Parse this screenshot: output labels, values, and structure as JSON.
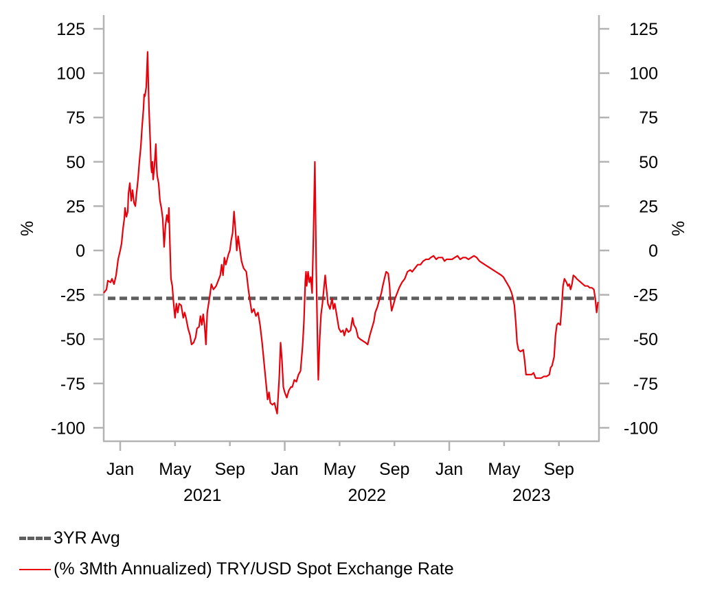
{
  "chart_data": {
    "type": "line",
    "title": "",
    "xlabel": "",
    "ylabel_left": "%",
    "ylabel_right": "%",
    "ylim": [
      -107,
      130
    ],
    "yticks": [
      125,
      100,
      75,
      50,
      25,
      0,
      -25,
      -50,
      -75,
      -100
    ],
    "yticks_labels": [
      "125",
      "100",
      "75",
      "50",
      "25",
      "0",
      "-25",
      "-50",
      "-75",
      "-100"
    ],
    "x_unit": "months since Jan 2021",
    "xlim": [
      -1.2,
      34.9
    ],
    "xticks": [
      {
        "m": 0,
        "label": "Jan",
        "major": true
      },
      {
        "m": 4,
        "label": "May",
        "major": false
      },
      {
        "m": 8,
        "label": "Sep",
        "major": false
      },
      {
        "m": 12,
        "label": "Jan",
        "major": true
      },
      {
        "m": 16,
        "label": "May",
        "major": false
      },
      {
        "m": 20,
        "label": "Sep",
        "major": false
      },
      {
        "m": 24,
        "label": "Jan",
        "major": true
      },
      {
        "m": 28,
        "label": "May",
        "major": false
      },
      {
        "m": 32,
        "label": "Sep",
        "major": false
      }
    ],
    "year_labels": [
      {
        "m": 6,
        "label": "2021"
      },
      {
        "m": 18,
        "label": "2022"
      },
      {
        "m": 30,
        "label": "2023"
      }
    ],
    "grid": false,
    "legend_position": "bottom-left",
    "series": [
      {
        "name": "3YR Avg",
        "style": "dashed",
        "color": "#5f5f5f",
        "value": -27
      },
      {
        "name": "(% 3Mth Annualized) TRY/USD Spot Exchange Rate",
        "style": "solid",
        "color": "#e8000b",
        "points": [
          [
            -1.2,
            -24
          ],
          [
            -1.0,
            -22
          ],
          [
            -0.9,
            -17
          ],
          [
            -0.7,
            -18
          ],
          [
            -0.6,
            -16
          ],
          [
            -0.45,
            -19
          ],
          [
            -0.3,
            -14
          ],
          [
            -0.15,
            -5
          ],
          [
            0.0,
            0
          ],
          [
            0.1,
            4
          ],
          [
            0.2,
            12
          ],
          [
            0.3,
            18
          ],
          [
            0.35,
            24
          ],
          [
            0.45,
            19
          ],
          [
            0.55,
            22
          ],
          [
            0.6,
            32
          ],
          [
            0.7,
            38
          ],
          [
            0.8,
            28
          ],
          [
            0.9,
            34
          ],
          [
            1.0,
            27
          ],
          [
            1.1,
            25
          ],
          [
            1.2,
            33
          ],
          [
            1.3,
            40
          ],
          [
            1.4,
            50
          ],
          [
            1.5,
            58
          ],
          [
            1.6,
            70
          ],
          [
            1.7,
            80
          ],
          [
            1.75,
            88
          ],
          [
            1.8,
            87
          ],
          [
            1.9,
            92
          ],
          [
            2.0,
            112
          ],
          [
            2.05,
            95
          ],
          [
            2.1,
            80
          ],
          [
            2.2,
            60
          ],
          [
            2.25,
            48
          ],
          [
            2.3,
            44
          ],
          [
            2.35,
            50
          ],
          [
            2.4,
            40
          ],
          [
            2.5,
            48
          ],
          [
            2.6,
            60
          ],
          [
            2.65,
            48
          ],
          [
            2.7,
            42
          ],
          [
            2.8,
            38
          ],
          [
            2.9,
            28
          ],
          [
            3.0,
            24
          ],
          [
            3.1,
            18
          ],
          [
            3.2,
            2
          ],
          [
            3.3,
            14
          ],
          [
            3.4,
            20
          ],
          [
            3.5,
            16
          ],
          [
            3.55,
            24
          ],
          [
            3.6,
            10
          ],
          [
            3.7,
            -16
          ],
          [
            3.8,
            -20
          ],
          [
            3.9,
            -30
          ],
          [
            4.0,
            -38
          ],
          [
            4.1,
            -30
          ],
          [
            4.2,
            -35
          ],
          [
            4.3,
            -30
          ],
          [
            4.45,
            -31
          ],
          [
            4.6,
            -38
          ],
          [
            4.7,
            -35
          ],
          [
            4.8,
            -38
          ],
          [
            4.95,
            -44
          ],
          [
            5.1,
            -48
          ],
          [
            5.2,
            -53
          ],
          [
            5.35,
            -52
          ],
          [
            5.5,
            -49
          ],
          [
            5.6,
            -44
          ],
          [
            5.75,
            -43
          ],
          [
            5.85,
            -37
          ],
          [
            5.95,
            -42
          ],
          [
            6.05,
            -36
          ],
          [
            6.15,
            -42
          ],
          [
            6.25,
            -53
          ],
          [
            6.35,
            -35
          ],
          [
            6.45,
            -30
          ],
          [
            6.55,
            -25
          ],
          [
            6.65,
            -19
          ],
          [
            6.8,
            -22
          ],
          [
            7.0,
            -20
          ],
          [
            7.1,
            -18
          ],
          [
            7.3,
            -14
          ],
          [
            7.4,
            -8
          ],
          [
            7.5,
            -14
          ],
          [
            7.6,
            -4
          ],
          [
            7.7,
            -8
          ],
          [
            7.8,
            -5
          ],
          [
            7.9,
            -2
          ],
          [
            8.0,
            0
          ],
          [
            8.1,
            6
          ],
          [
            8.2,
            10
          ],
          [
            8.3,
            22
          ],
          [
            8.4,
            12
          ],
          [
            8.5,
            0
          ],
          [
            8.6,
            8
          ],
          [
            8.7,
            2
          ],
          [
            8.85,
            -6
          ],
          [
            9.0,
            -10
          ],
          [
            9.2,
            -12
          ],
          [
            9.35,
            -22
          ],
          [
            9.5,
            -30
          ],
          [
            9.6,
            -35
          ],
          [
            9.75,
            -33
          ],
          [
            9.9,
            -37
          ],
          [
            10.05,
            -35
          ],
          [
            10.2,
            -42
          ],
          [
            10.35,
            -52
          ],
          [
            10.5,
            -64
          ],
          [
            10.65,
            -76
          ],
          [
            10.75,
            -84
          ],
          [
            10.85,
            -80
          ],
          [
            10.95,
            -86
          ],
          [
            11.1,
            -87
          ],
          [
            11.25,
            -86
          ],
          [
            11.35,
            -89
          ],
          [
            11.45,
            -92
          ],
          [
            11.6,
            -72
          ],
          [
            11.7,
            -52
          ],
          [
            11.8,
            -62
          ],
          [
            11.9,
            -77
          ],
          [
            12.0,
            -80
          ],
          [
            12.15,
            -83
          ],
          [
            12.3,
            -79
          ],
          [
            12.45,
            -77
          ],
          [
            12.55,
            -77
          ],
          [
            12.7,
            -73
          ],
          [
            12.85,
            -74
          ],
          [
            13.0,
            -70
          ],
          [
            13.15,
            -68
          ],
          [
            13.3,
            -54
          ],
          [
            13.4,
            -40
          ],
          [
            13.5,
            -17
          ],
          [
            13.55,
            -12
          ],
          [
            13.6,
            -20
          ],
          [
            13.7,
            -12
          ],
          [
            13.8,
            -18
          ],
          [
            13.9,
            -15
          ],
          [
            14.0,
            -24
          ],
          [
            14.1,
            10
          ],
          [
            14.2,
            50
          ],
          [
            14.3,
            -10
          ],
          [
            14.4,
            -55
          ],
          [
            14.45,
            -73
          ],
          [
            14.55,
            -50
          ],
          [
            14.65,
            -36
          ],
          [
            14.75,
            -30
          ],
          [
            14.85,
            -22
          ],
          [
            14.95,
            -14
          ],
          [
            15.05,
            -22
          ],
          [
            15.15,
            -30
          ],
          [
            15.3,
            -33
          ],
          [
            15.45,
            -27
          ],
          [
            15.55,
            -33
          ],
          [
            15.65,
            -30
          ],
          [
            15.8,
            -37
          ],
          [
            15.95,
            -44
          ],
          [
            16.1,
            -46
          ],
          [
            16.25,
            -45
          ],
          [
            16.35,
            -48
          ],
          [
            16.5,
            -44
          ],
          [
            16.65,
            -46
          ],
          [
            16.8,
            -45
          ],
          [
            16.95,
            -38
          ],
          [
            17.05,
            -42
          ],
          [
            17.2,
            -44
          ],
          [
            17.35,
            -49
          ],
          [
            17.5,
            -50
          ],
          [
            17.7,
            -51
          ],
          [
            17.9,
            -52
          ],
          [
            18.05,
            -53
          ],
          [
            18.2,
            -48
          ],
          [
            18.35,
            -44
          ],
          [
            18.5,
            -40
          ],
          [
            18.6,
            -35
          ],
          [
            18.75,
            -32
          ],
          [
            18.9,
            -28
          ],
          [
            19.05,
            -24
          ],
          [
            19.15,
            -20
          ],
          [
            19.3,
            -15
          ],
          [
            19.4,
            -12
          ],
          [
            19.55,
            -13
          ],
          [
            19.65,
            -20
          ],
          [
            19.7,
            -27
          ],
          [
            19.8,
            -34
          ],
          [
            19.95,
            -30
          ],
          [
            20.05,
            -27
          ],
          [
            20.2,
            -24
          ],
          [
            20.35,
            -21
          ],
          [
            20.55,
            -18
          ],
          [
            20.75,
            -16
          ],
          [
            20.95,
            -12
          ],
          [
            21.15,
            -11
          ],
          [
            21.3,
            -12
          ],
          [
            21.5,
            -10
          ],
          [
            21.7,
            -8
          ],
          [
            21.9,
            -8
          ],
          [
            22.1,
            -6
          ],
          [
            22.3,
            -5
          ],
          [
            22.5,
            -5
          ],
          [
            22.65,
            -4
          ],
          [
            22.85,
            -3
          ],
          [
            23.05,
            -5
          ],
          [
            23.2,
            -4
          ],
          [
            23.35,
            -4
          ],
          [
            23.5,
            -4
          ],
          [
            23.65,
            -6
          ],
          [
            23.8,
            -5
          ],
          [
            24.0,
            -5
          ],
          [
            24.2,
            -5
          ],
          [
            24.4,
            -4
          ],
          [
            24.6,
            -3
          ],
          [
            24.8,
            -5
          ],
          [
            25.0,
            -4
          ],
          [
            25.2,
            -4
          ],
          [
            25.4,
            -5
          ],
          [
            25.6,
            -4
          ],
          [
            25.8,
            -3
          ],
          [
            26.0,
            -4
          ],
          [
            26.2,
            -6
          ],
          [
            26.4,
            -7
          ],
          [
            26.6,
            -8
          ],
          [
            26.8,
            -9
          ],
          [
            27.0,
            -10
          ],
          [
            27.2,
            -11
          ],
          [
            27.4,
            -12
          ],
          [
            27.6,
            -13
          ],
          [
            27.8,
            -14
          ],
          [
            27.95,
            -15
          ],
          [
            28.1,
            -17
          ],
          [
            28.25,
            -19
          ],
          [
            28.4,
            -21
          ],
          [
            28.55,
            -24
          ],
          [
            28.65,
            -27
          ],
          [
            28.75,
            -31
          ],
          [
            28.85,
            -40
          ],
          [
            28.95,
            -52
          ],
          [
            29.05,
            -56
          ],
          [
            29.2,
            -57
          ],
          [
            29.4,
            -56
          ],
          [
            29.5,
            -62
          ],
          [
            29.6,
            -70
          ],
          [
            29.8,
            -70
          ],
          [
            30.0,
            -70
          ],
          [
            30.15,
            -69
          ],
          [
            30.3,
            -72
          ],
          [
            30.5,
            -72
          ],
          [
            30.7,
            -72
          ],
          [
            30.9,
            -71
          ],
          [
            31.1,
            -71
          ],
          [
            31.3,
            -70
          ],
          [
            31.4,
            -66
          ],
          [
            31.5,
            -65
          ],
          [
            31.65,
            -60
          ],
          [
            31.75,
            -48
          ],
          [
            31.85,
            -42
          ],
          [
            31.95,
            -41
          ],
          [
            32.1,
            -42
          ],
          [
            32.2,
            -32
          ],
          [
            32.3,
            -20
          ],
          [
            32.4,
            -16
          ],
          [
            32.55,
            -18
          ],
          [
            32.65,
            -20
          ],
          [
            32.75,
            -19
          ],
          [
            32.85,
            -22
          ],
          [
            32.95,
            -19
          ],
          [
            33.05,
            -14
          ],
          [
            33.2,
            -15
          ],
          [
            33.3,
            -16
          ],
          [
            33.45,
            -17
          ],
          [
            33.6,
            -18
          ],
          [
            33.75,
            -19
          ],
          [
            33.9,
            -20
          ],
          [
            34.1,
            -20
          ],
          [
            34.25,
            -21
          ],
          [
            34.4,
            -21
          ],
          [
            34.55,
            -22
          ],
          [
            34.65,
            -27
          ],
          [
            34.75,
            -35
          ],
          [
            34.85,
            -29
          ]
        ]
      }
    ]
  },
  "legend": {
    "items": [
      {
        "label": "3YR Avg",
        "style": "dashed"
      },
      {
        "label": "(% 3Mth Annualized) TRY/USD Spot Exchange Rate",
        "style": "solid"
      }
    ]
  }
}
